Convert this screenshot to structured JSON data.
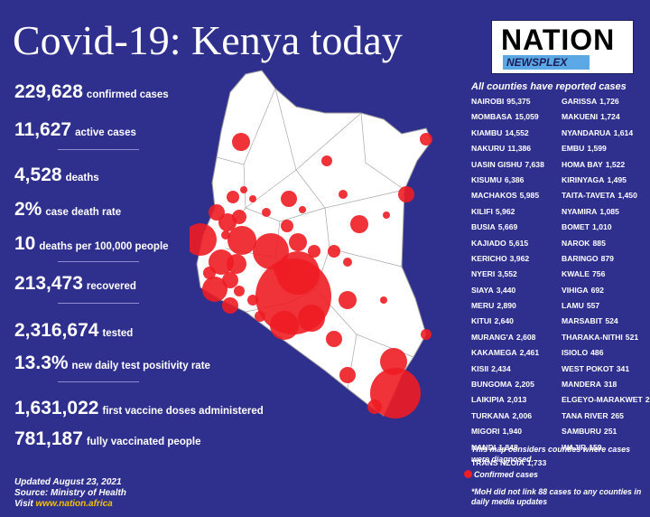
{
  "title": "Covid-19: Kenya today",
  "logo": {
    "brand": "NATION",
    "sub": "NEWSPLEX"
  },
  "stats": [
    {
      "value": "229,628",
      "label": "confirmed cases"
    },
    {
      "value": "11,627",
      "label": "active cases"
    },
    {
      "value": "4,528",
      "label": "deaths"
    },
    {
      "value": "2%",
      "label": "case death rate"
    },
    {
      "value": "10",
      "label": "deaths per 100,000 people"
    },
    {
      "value": "213,473",
      "label": "recovered"
    },
    {
      "value": "2,316,674",
      "label": "tested"
    },
    {
      "value": "13.3%",
      "label": "new daily test positivity rate"
    },
    {
      "value": "1,631,022",
      "label": "first vaccine doses administered"
    },
    {
      "value": "781,187",
      "label": "fully vaccinated people"
    }
  ],
  "footer": {
    "updated": "Updated August 23, 2021",
    "source": "Source: Ministry of Health",
    "visit_prefix": "Visit",
    "visit_link": "www.nation.africa"
  },
  "counties_title": "All counties have reported cases",
  "counties_left": [
    {
      "name": "NAIROBI",
      "value": "95,375"
    },
    {
      "name": "MOMBASA",
      "value": "15,059"
    },
    {
      "name": "KIAMBU",
      "value": "14,552"
    },
    {
      "name": "NAKURU",
      "value": "11,386"
    },
    {
      "name": "UASIN GISHU",
      "value": "7,638"
    },
    {
      "name": "KISUMU",
      "value": "6,386"
    },
    {
      "name": "MACHAKOS",
      "value": "5,985"
    },
    {
      "name": "KILIFI",
      "value": "5,962"
    },
    {
      "name": "BUSIA",
      "value": "5,669"
    },
    {
      "name": "KAJIADO",
      "value": "5,615"
    },
    {
      "name": "KERICHO",
      "value": "3,962"
    },
    {
      "name": "NYERI",
      "value": "3,552"
    },
    {
      "name": "SIAYA",
      "value": "3,440"
    },
    {
      "name": "MERU",
      "value": "2,890"
    },
    {
      "name": "KITUI",
      "value": "2,640"
    },
    {
      "name": "MURANG'A",
      "value": "2,608"
    },
    {
      "name": "KAKAMEGA",
      "value": "2,461"
    },
    {
      "name": "KISII",
      "value": "2,434"
    },
    {
      "name": "BUNGOMA",
      "value": "2,205"
    },
    {
      "name": "LAIKIPIA",
      "value": "2,013"
    },
    {
      "name": "TURKANA",
      "value": "2,006"
    },
    {
      "name": "MIGORI",
      "value": "1,940"
    },
    {
      "name": "NANDI",
      "value": "1,848"
    },
    {
      "name": "TRANS NZOIA",
      "value": "1,733"
    }
  ],
  "counties_right": [
    {
      "name": "GARISSA",
      "value": "1,726"
    },
    {
      "name": "MAKUENI",
      "value": "1,724"
    },
    {
      "name": "NYANDARUA",
      "value": "1,614"
    },
    {
      "name": "EMBU",
      "value": "1,599"
    },
    {
      "name": "HOMA BAY",
      "value": "1,522"
    },
    {
      "name": "KIRINYAGA",
      "value": "1,495"
    },
    {
      "name": "TAITA-TAVETA",
      "value": "1,450"
    },
    {
      "name": "NYAMIRA",
      "value": "1,085"
    },
    {
      "name": "BOMET",
      "value": "1,010"
    },
    {
      "name": "NAROK",
      "value": "885"
    },
    {
      "name": "BARINGO",
      "value": "879"
    },
    {
      "name": "KWALE",
      "value": "756"
    },
    {
      "name": "VIHIGA",
      "value": "692"
    },
    {
      "name": "LAMU",
      "value": "557"
    },
    {
      "name": "MARSABIT",
      "value": "524"
    },
    {
      "name": "THARAKA-NITHI",
      "value": "521"
    },
    {
      "name": "ISIOLO",
      "value": "486"
    },
    {
      "name": "WEST POKOT",
      "value": "341"
    },
    {
      "name": "MANDERA",
      "value": "318"
    },
    {
      "name": "ELGEYO-MARAKWET",
      "value": "293"
    },
    {
      "name": "TANA RIVER",
      "value": "265"
    },
    {
      "name": "SAMBURU",
      "value": "251"
    },
    {
      "name": "WAJIR",
      "value": "159"
    }
  ],
  "map_note": "This map considers counties where cases were diagnosed.",
  "legend_label": "Confirmed cases",
  "foot_note": "*MoH did not link 88 cases to any counties in daily media updates",
  "colors": {
    "background": "#2f2f8e",
    "bubble": "#ee1c24",
    "link": "#f2c200"
  }
}
